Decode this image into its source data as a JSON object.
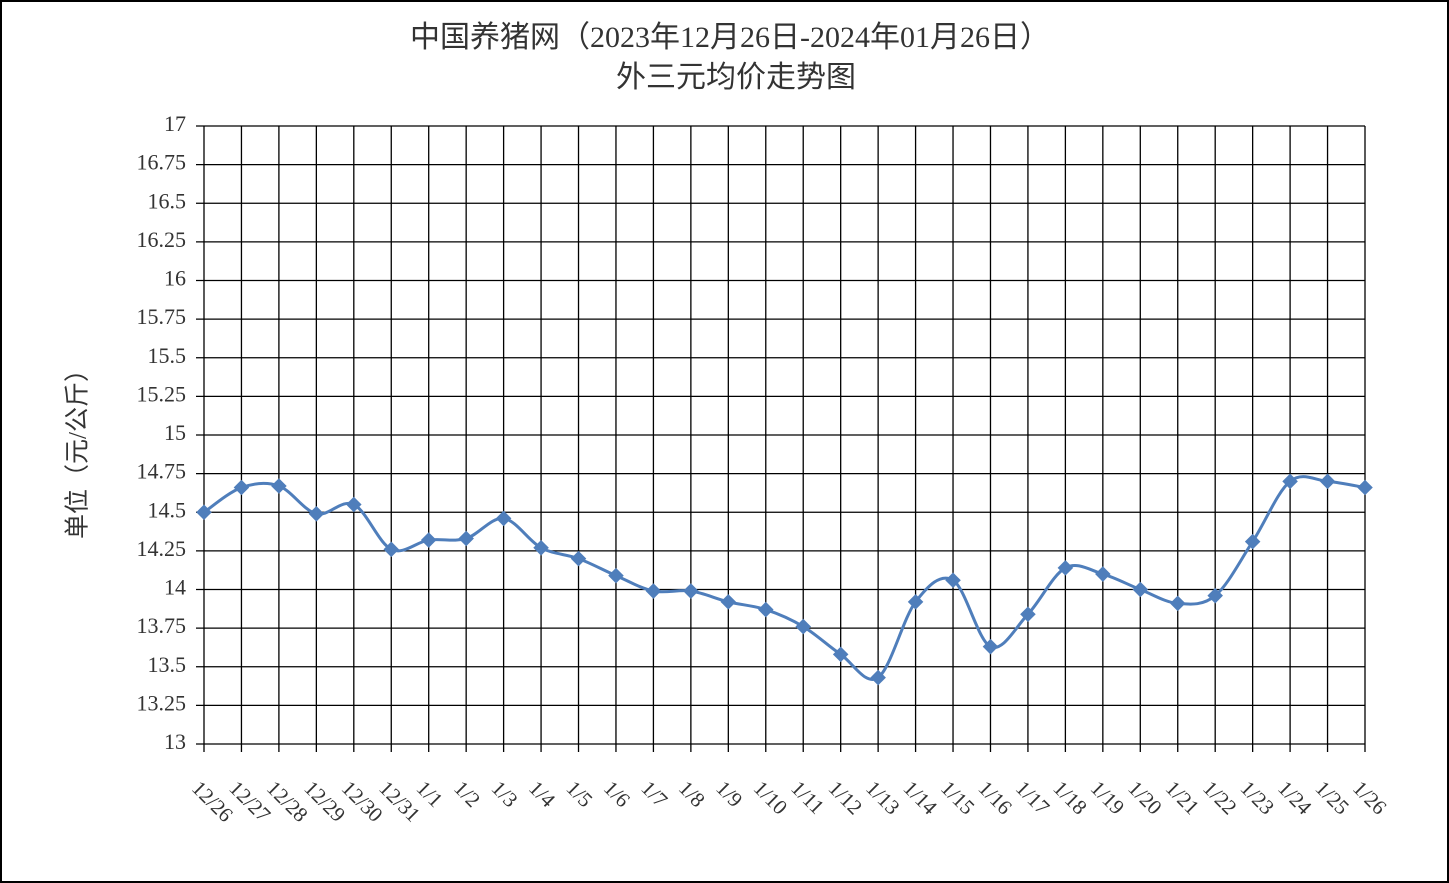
{
  "chart_data": {
    "type": "line",
    "title": "中国养猪网（2023年12月26日-2024年01月26日）",
    "subtitle": "外三元均价走势图",
    "y_label": "单位（元/公斤）",
    "categories": [
      "12/26",
      "12/27",
      "12/28",
      "12/29",
      "12/30",
      "12/31",
      "1/1",
      "1/2",
      "1/3",
      "1/4",
      "1/5",
      "1/6",
      "1/7",
      "1/8",
      "1/9",
      "1/10",
      "1/11",
      "1/12",
      "1/13",
      "1/14",
      "1/15",
      "1/16",
      "1/17",
      "1/18",
      "1/19",
      "1/20",
      "1/21",
      "1/22",
      "1/23",
      "1/24",
      "1/25",
      "1/26"
    ],
    "series": [
      {
        "name": "外三元",
        "color": "#4f7ebb",
        "values": [
          14.5,
          14.66,
          14.67,
          14.49,
          14.55,
          14.26,
          14.32,
          14.33,
          14.46,
          14.27,
          14.2,
          14.09,
          13.99,
          13.99,
          13.92,
          13.87,
          13.76,
          13.58,
          13.43,
          13.92,
          14.06,
          13.63,
          13.84,
          14.14,
          14.1,
          14.0,
          13.91,
          13.96,
          14.31,
          14.7,
          14.7,
          14.66
        ]
      }
    ],
    "ylim": [
      13,
      17
    ],
    "yticks": [
      13,
      13.25,
      13.5,
      13.75,
      14,
      14.25,
      14.5,
      14.75,
      15,
      15.25,
      15.5,
      15.75,
      16,
      16.25,
      16.5,
      16.75,
      17
    ],
    "grid": true
  }
}
